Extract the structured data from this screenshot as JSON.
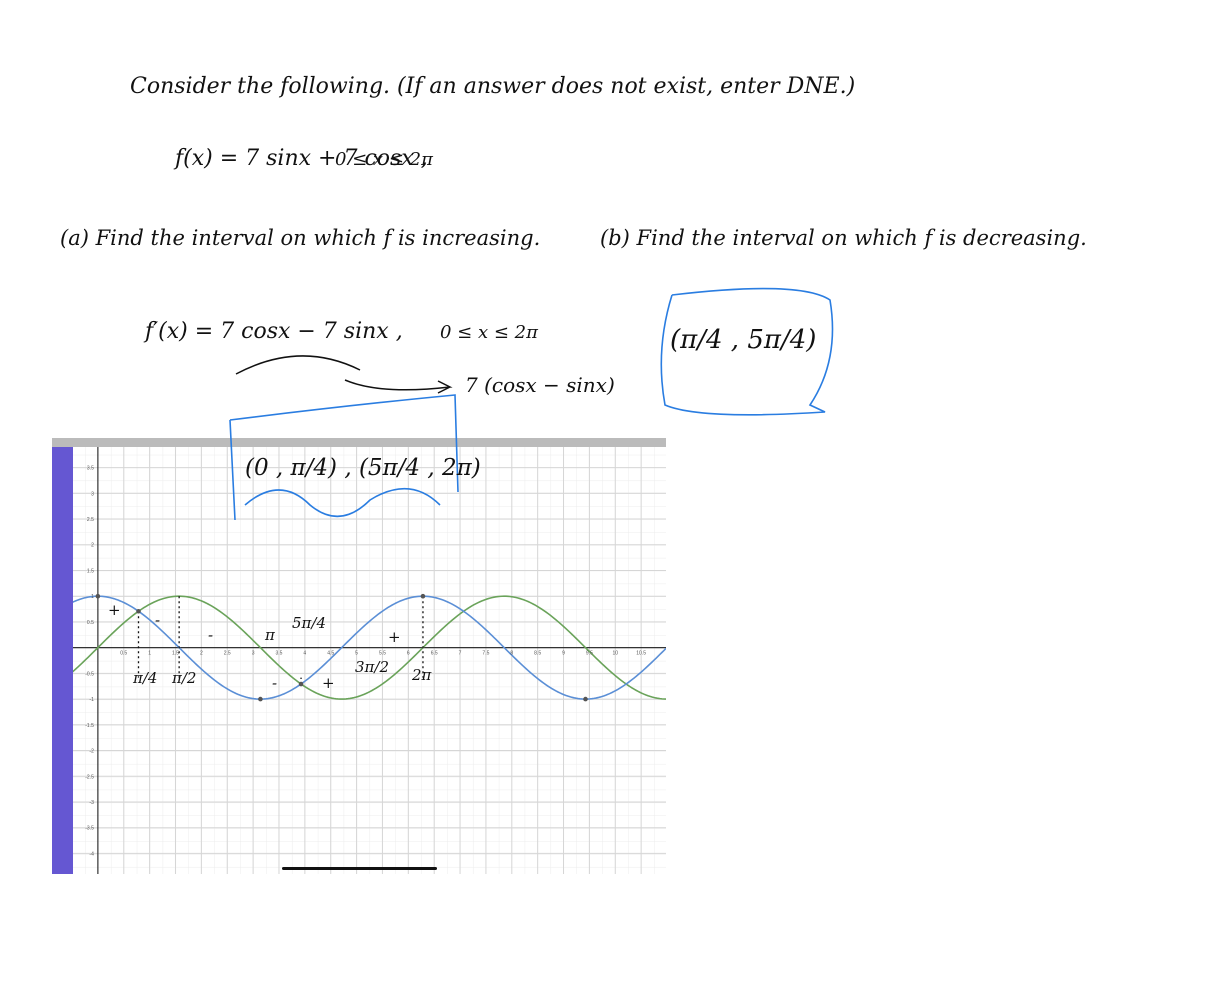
{
  "question": {
    "prompt": "Consider the following. (If an answer does not exist, enter DNE.)",
    "function": "f(x) = 7 sinx + 7 cosx ,",
    "domain": "0 ≤ x ≤ 2π",
    "part_a": "(a) Find the interval on which f is increasing.",
    "part_b": "(b) Find the interval on which f is decreasing."
  },
  "work": {
    "derivative": "f′(x) = 7 cosx − 7 sinx ,",
    "domain": "0 ≤ x ≤ 2π",
    "factored": "7 (cosx − sinx)",
    "decreasing_answer": "(π/4 , 5π/4)",
    "increasing_answer": "(0 , π/4) , (5π/4 , 2π)"
  },
  "graph": {
    "xlim": [
      -0.5,
      11
    ],
    "ylim": [
      -4.4,
      3.9
    ],
    "xticks": [
      0.5,
      1,
      1.5,
      2,
      2.5,
      3,
      3.5,
      4,
      4.5,
      5,
      5.5,
      6,
      6.5,
      7,
      7.5,
      8,
      8.5,
      9,
      9.5,
      10,
      10.5
    ],
    "yticks": [
      3.5,
      3,
      2.5,
      2,
      1.5,
      1,
      0.5,
      -0.5,
      -1,
      -1.5,
      -2,
      -2.5,
      -3,
      -3.5,
      -4
    ],
    "annotations": [
      "+",
      "-",
      "-",
      "π",
      "5π/4",
      "+",
      "π/4",
      "π/2",
      "-",
      "+",
      "3π/2",
      "2π"
    ]
  }
}
